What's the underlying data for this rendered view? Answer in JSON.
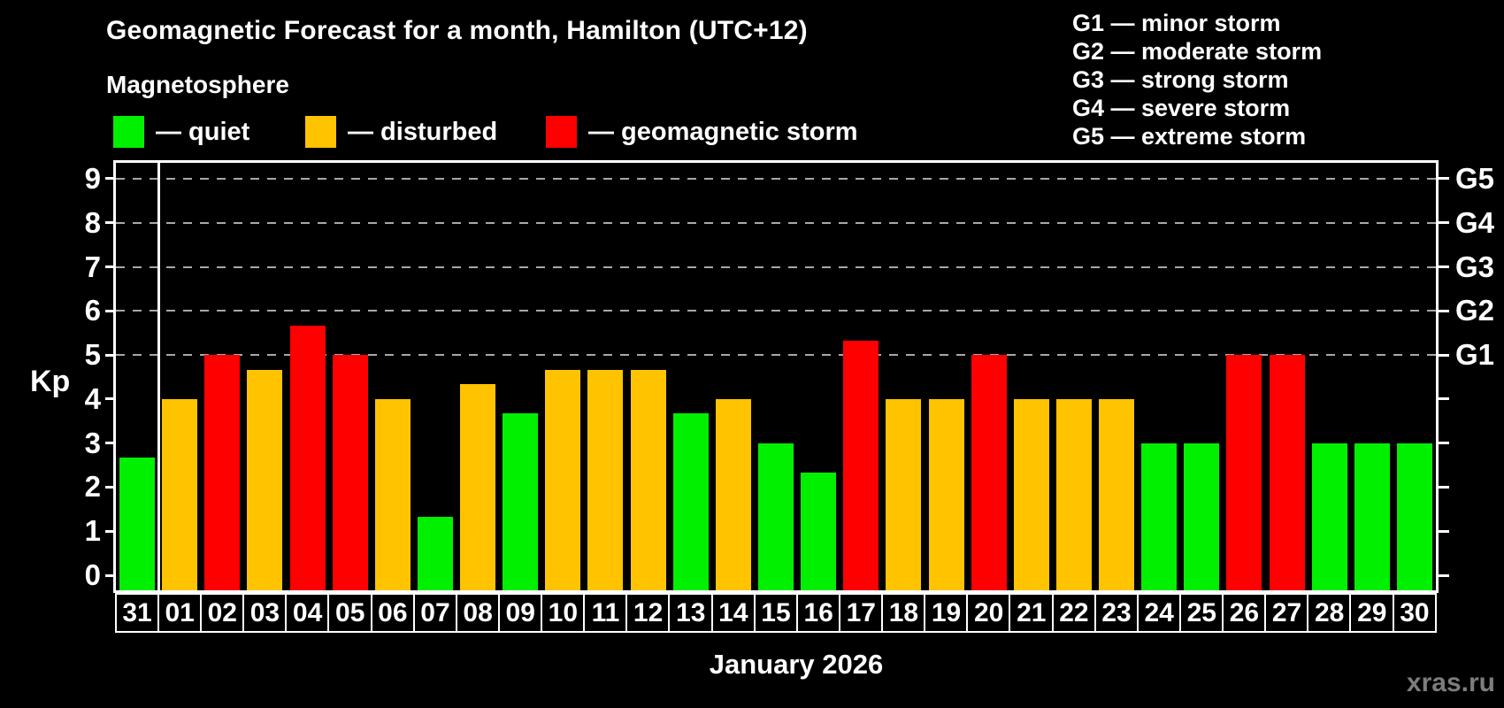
{
  "title": "Geomagnetic Forecast for a month, Hamilton (UTC+12)",
  "subtitle": "Magnetosphere",
  "legend": {
    "items": [
      {
        "key": "quiet",
        "label": "— quiet",
        "color": "#00f000"
      },
      {
        "key": "disturbed",
        "label": "— disturbed",
        "color": "#ffc300"
      },
      {
        "key": "storm",
        "label": "— geomagnetic storm",
        "color": "#ff0000"
      }
    ]
  },
  "storm_scale": [
    {
      "text": "G1 — minor storm"
    },
    {
      "text": "G2 — moderate storm"
    },
    {
      "text": "G3 — strong storm"
    },
    {
      "text": "G4 — severe storm"
    },
    {
      "text": "G5 — extreme storm"
    }
  ],
  "watermark": "xras.ru",
  "chart_data": {
    "type": "bar",
    "title": "Geomagnetic Forecast for a month, Hamilton (UTC+12)",
    "xlabel": "January 2026",
    "ylabel": "Kp",
    "ylim": [
      0,
      9
    ],
    "yticks": [
      0,
      1,
      2,
      3,
      4,
      5,
      6,
      7,
      8,
      9
    ],
    "gridlines_at": [
      5,
      6,
      7,
      8,
      9
    ],
    "grid": "dashed horizontal at Kp 5-9 only",
    "categories": [
      "31",
      "01",
      "02",
      "03",
      "04",
      "05",
      "06",
      "07",
      "08",
      "09",
      "10",
      "11",
      "12",
      "13",
      "14",
      "15",
      "16",
      "17",
      "18",
      "19",
      "20",
      "21",
      "22",
      "23",
      "24",
      "25",
      "26",
      "27",
      "28",
      "29",
      "30"
    ],
    "values": [
      2.67,
      4,
      5,
      4.67,
      5.67,
      5,
      4,
      1.33,
      4.33,
      3.67,
      4.67,
      4.67,
      4.67,
      3.67,
      4,
      3,
      2.33,
      5.33,
      4,
      4,
      5,
      4,
      4,
      4,
      3,
      3,
      5,
      5,
      3,
      3,
      3
    ],
    "status_thresholds": {
      "disturbed_min": 4,
      "storm_min": 5
    },
    "status_colors": {
      "quiet": "#00f000",
      "disturbed": "#ffc300",
      "storm": "#ff0000"
    },
    "right_axis": [
      {
        "kp": 5,
        "label": "G1"
      },
      {
        "kp": 6,
        "label": "G2"
      },
      {
        "kp": 7,
        "label": "G3"
      },
      {
        "kp": 8,
        "label": "G4"
      },
      {
        "kp": 9,
        "label": "G5"
      }
    ],
    "prev_month_separator_after_category": "31",
    "legend_position": "top-left"
  }
}
